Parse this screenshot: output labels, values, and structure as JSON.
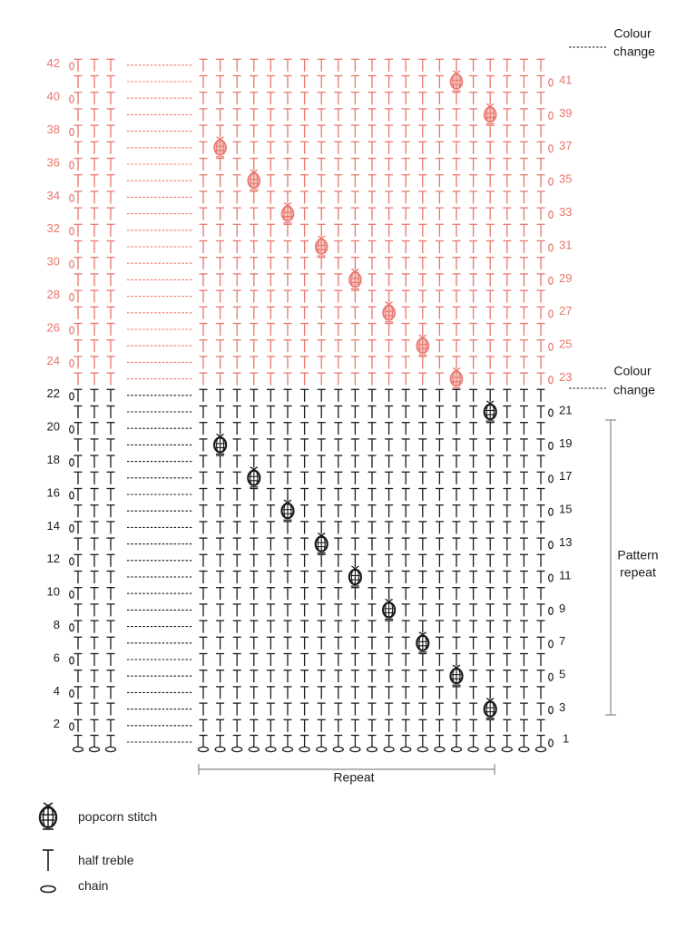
{
  "chart": {
    "row_count": 42,
    "repeat_label": "Repeat",
    "pattern_repeat_label": [
      "Pattern",
      "repeat"
    ],
    "colour_change_label": [
      "Colour",
      "change"
    ],
    "colors": {
      "main": "#1a1a1a",
      "contrast": "#e8776d",
      "bracket": "#888888"
    },
    "popcorn_stitches": [
      {
        "row": 3,
        "column": 18
      },
      {
        "row": 5,
        "column": 16
      },
      {
        "row": 7,
        "column": 14
      },
      {
        "row": 9,
        "column": 12
      },
      {
        "row": 11,
        "column": 10
      },
      {
        "row": 13,
        "column": 8
      },
      {
        "row": 15,
        "column": 6
      },
      {
        "row": 17,
        "column": 4
      },
      {
        "row": 19,
        "column": 2
      },
      {
        "row": 21,
        "column": 18
      },
      {
        "row": 23,
        "column": 16
      },
      {
        "row": 25,
        "column": 14
      },
      {
        "row": 27,
        "column": 12
      },
      {
        "row": 29,
        "column": 10
      },
      {
        "row": 31,
        "column": 8
      },
      {
        "row": 33,
        "column": 6
      },
      {
        "row": 35,
        "column": 4
      },
      {
        "row": 37,
        "column": 2
      },
      {
        "row": 39,
        "column": 18
      },
      {
        "row": 41,
        "column": 16
      }
    ]
  },
  "legend": {
    "items": [
      {
        "icon": "popcorn-stitch-icon",
        "label": "popcorn stitch"
      },
      {
        "icon": "half-treble-icon",
        "label": "half treble"
      },
      {
        "icon": "chain-icon",
        "label": "chain"
      }
    ]
  }
}
